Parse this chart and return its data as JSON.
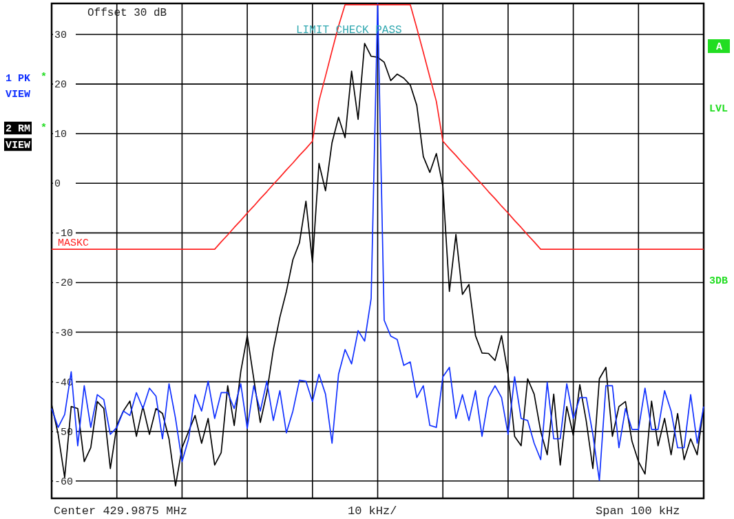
{
  "chart_data": {
    "type": "line",
    "ylim": [
      -63.5,
      36.25
    ],
    "categories": [
      null,
      null,
      null,
      null,
      null,
      null,
      null,
      null,
      null,
      null,
      null,
      null,
      null,
      null,
      null,
      null,
      null,
      null,
      null,
      null,
      null,
      null,
      null,
      null,
      null,
      null,
      null,
      null,
      null,
      null,
      null,
      null,
      null,
      null,
      null,
      null,
      null,
      null,
      null,
      null,
      null,
      null,
      null,
      null,
      null,
      null,
      null,
      null,
      null,
      null,
      null,
      null,
      null,
      null,
      null,
      null,
      null,
      null,
      null,
      null,
      null,
      null,
      null,
      null,
      null,
      null,
      null,
      null,
      null,
      null,
      null,
      null,
      null,
      null,
      null,
      null,
      null,
      null,
      null,
      null,
      null,
      null,
      null,
      null,
      null,
      null,
      null,
      null,
      null,
      null,
      null,
      null,
      null,
      null,
      null,
      null,
      null,
      null,
      null,
      null,
      null
    ],
    "yticks": [
      30,
      20,
      10,
      0,
      -10,
      -20,
      -30,
      -40,
      -50,
      -60
    ],
    "grid": true,
    "annotations": [
      "Offset 30 dB",
      "LIMIT CHECK PASS",
      "*",
      "VIEW",
      "*",
      "VIEW",
      "A",
      "LVL",
      "3DB",
      "Center 429.9875 MHz",
      "10 kHz/",
      "Span 100 kHz"
    ],
    "series": [
      {
        "name": "2 RM",
        "color": "#000000",
        "values": [
          -44.6,
          -50.6,
          -59.3,
          -45,
          -45.4,
          -56.1,
          -53.3,
          -44,
          -45.4,
          -57.5,
          -48.8,
          -45.9,
          -43.9,
          -51,
          -45,
          -50.6,
          -45.4,
          -46.4,
          -51.5,
          -61,
          -53.3,
          -50,
          -46.8,
          -52.4,
          -47.4,
          -56.8,
          -54.3,
          -40.8,
          -48.8,
          -38,
          -30.7,
          -39.4,
          -48.2,
          -42.2,
          -33.5,
          -27,
          -21.8,
          -15.4,
          -12,
          -3.6,
          -16,
          4,
          -1.5,
          8.2,
          13.3,
          9.2,
          22.6,
          12.9,
          28.2,
          25.6,
          25.4,
          24.4,
          20.7,
          22,
          21.2,
          19.8,
          15.7,
          5.4,
          2.2,
          6,
          -0.6,
          -21.8,
          -10.3,
          -22.4,
          -20.4,
          -30.7,
          -34.2,
          -34.3,
          -35.7,
          -30.7,
          -38.5,
          -51,
          -52.9,
          -39.4,
          -42.5,
          -50,
          -54.7,
          -42.5,
          -56.8,
          -45,
          -50.8,
          -40.6,
          -48,
          -57.5,
          -39.4,
          -37.1,
          -51,
          -45,
          -44,
          -52,
          -56.1,
          -58.6,
          -43.9,
          -52.9,
          -47.4,
          -54.7,
          -46.4,
          -55.7,
          -51.5,
          -54.7,
          -45
        ]
      },
      {
        "name": "1 PK",
        "color": "#1030ff",
        "values": [
          -45.4,
          -49.2,
          -46.6,
          -38,
          -52.9,
          -40.8,
          -49.2,
          -42.6,
          -43.6,
          -50.6,
          -49.2,
          -45.9,
          -46.8,
          -42.2,
          -45.4,
          -41.3,
          -42.9,
          -51.5,
          -40.4,
          -47.4,
          -56.1,
          -51.5,
          -42.6,
          -45.9,
          -39.9,
          -47.4,
          -42.2,
          -42.2,
          -45.4,
          -40.4,
          -49.4,
          -40.8,
          -45.9,
          -39.9,
          -47.8,
          -41.8,
          -50.3,
          -45.9,
          -39.7,
          -39.9,
          -44,
          -38.5,
          -42.5,
          -52.4,
          -38.5,
          -33.5,
          -36.4,
          -29.7,
          -31.8,
          -23.2,
          36.2,
          -27.6,
          -30.8,
          -31.5,
          -36.7,
          -36,
          -43.2,
          -40.8,
          -48.8,
          -49.2,
          -39,
          -37.1,
          -47.4,
          -42.6,
          -47.8,
          -41.8,
          -51,
          -43.2,
          -40.8,
          -43.2,
          -50.6,
          -39,
          -47.4,
          -47.8,
          -52.4,
          -55.7,
          -40.1,
          -51.5,
          -51.5,
          -40.4,
          -47.4,
          -43.2,
          -43.2,
          -50.6,
          -59.9,
          -40.8,
          -40.8,
          -53.3,
          -45.4,
          -49.6,
          -49.6,
          -41.3,
          -49.6,
          -49.6,
          -41.8,
          -45.9,
          -53.3,
          -53.3,
          -42.6,
          -52.4,
          -45
        ]
      },
      {
        "name": "MASKC",
        "color": "#ff2020",
        "values": [
          -13.3,
          -13.3,
          -13.3,
          -13.3,
          -13.3,
          -13.3,
          -13.3,
          -13.3,
          -13.3,
          -13.3,
          -13.3,
          -13.3,
          -13.3,
          -13.3,
          -13.3,
          -13.3,
          -13.3,
          -13.3,
          -13.3,
          -13.3,
          -13.3,
          -13.3,
          -13.3,
          -13.3,
          -13.3,
          -13.3,
          -11.8,
          -10.4,
          -8.9,
          -7.5,
          -6.0,
          -4.6,
          -3.1,
          -1.7,
          -0.2,
          1.2,
          2.7,
          4.1,
          5.6,
          7.0,
          8.5,
          16.6,
          21.6,
          26.7,
          31.7,
          36,
          36,
          36,
          36,
          36,
          36,
          36,
          36,
          36,
          36,
          36,
          31.3,
          26.4,
          21.4,
          16.5,
          8.5,
          7.0,
          5.6,
          4.1,
          2.7,
          1.2,
          -0.2,
          -1.7,
          -3.1,
          -4.6,
          -6.0,
          -7.5,
          -8.9,
          -10.4,
          -11.8,
          -13.3,
          -13.3,
          -13.3,
          -13.3,
          -13.3,
          -13.3,
          -13.3,
          -13.3,
          -13.3,
          -13.3,
          -13.3,
          -13.3,
          -13.3,
          -13.3,
          -13.3,
          -13.3,
          -13.3,
          -13.3,
          -13.3,
          -13.3,
          -13.3,
          -13.3,
          -13.3,
          -13.3,
          -13.3,
          -13.3
        ]
      }
    ]
  }
}
